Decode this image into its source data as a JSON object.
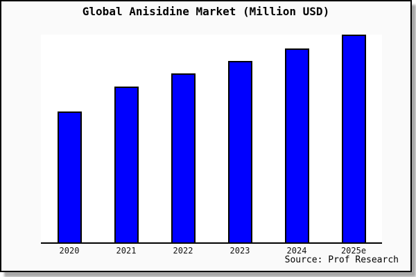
{
  "chart": {
    "title": "Global Anisidine Market (Million USD)",
    "source": "Source: Prof Research"
  },
  "colors": {
    "bar_fill": "#0000ff",
    "bar_border": "#000000",
    "card_background": "#fafafa",
    "plot_background": "#ffffff",
    "frame_border": "#000000",
    "shadow": "#a9a9a9"
  },
  "chart_data": {
    "type": "bar",
    "title": "Global Anisidine Market (Million USD)",
    "categories": [
      "2020",
      "2021",
      "2022",
      "2023",
      "2024",
      "2025e"
    ],
    "values": [
      63,
      75,
      81.5,
      87.5,
      93.5,
      100
    ],
    "xlabel": "",
    "ylabel": "",
    "ylim": [
      0,
      100
    ],
    "y_axis_shown": false,
    "grid": false,
    "legend": false,
    "values_note": "No y-axis scale or data labels are shown in the image; values are relative estimates from bar pixel heights with the tallest bar (2025e) normalized to 100.",
    "annotations": [
      "Source: Prof Research"
    ]
  }
}
